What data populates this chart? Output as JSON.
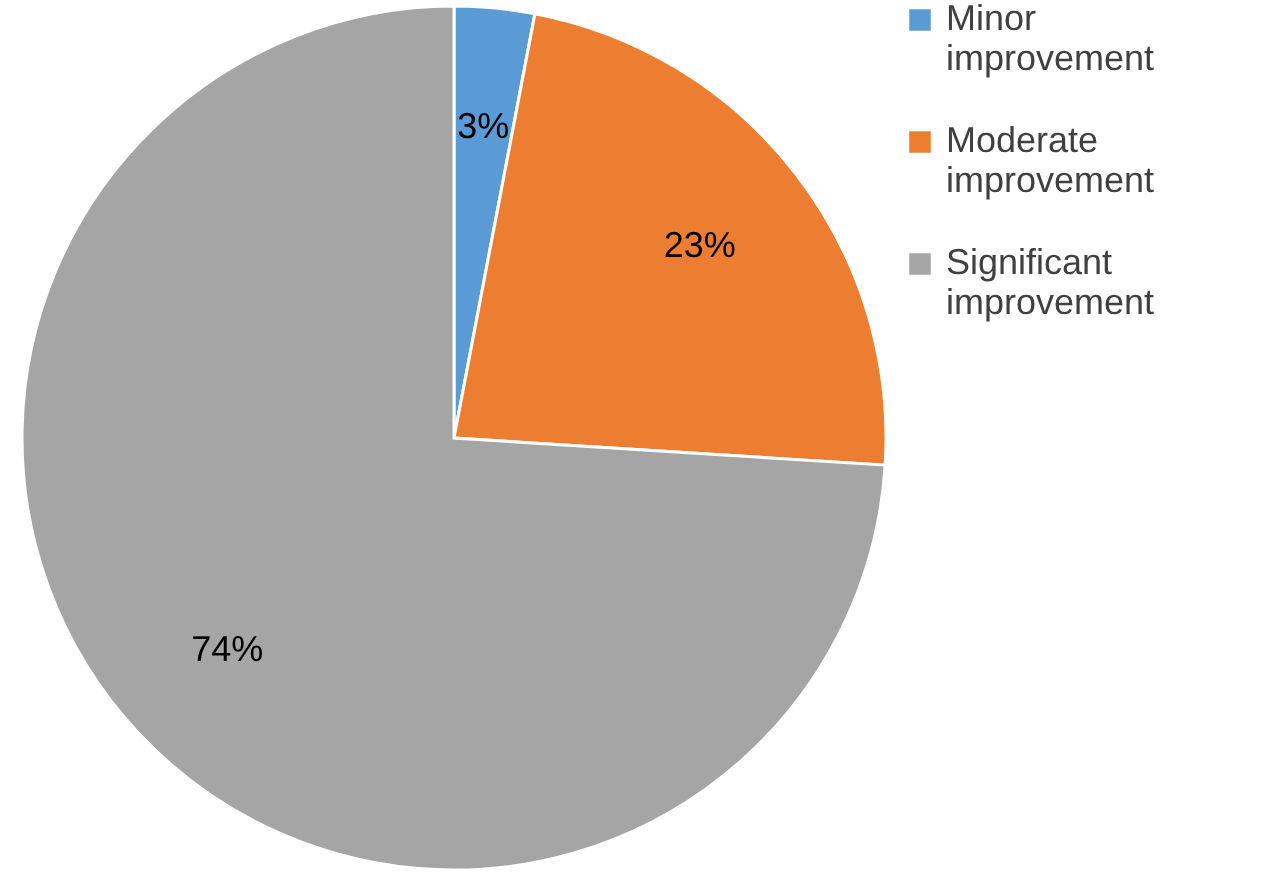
{
  "chart_data": {
    "type": "pie",
    "categories": [
      "Minor improvement",
      "Moderate improvement",
      "Significant improvement"
    ],
    "values": [
      3,
      23,
      74
    ],
    "value_labels": [
      "3%",
      "23%",
      "74%"
    ],
    "colors": [
      "#5b9bd5",
      "#ed7d31",
      "#a5a5a5"
    ],
    "legend": "right"
  }
}
